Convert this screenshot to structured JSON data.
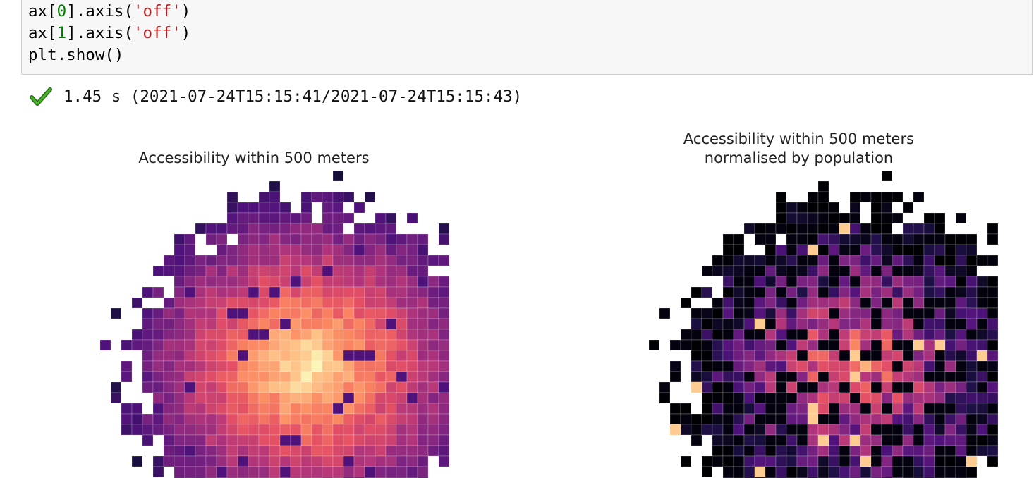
{
  "code": {
    "lines": [
      {
        "pre": "ax[",
        "num": "0",
        "mid": "].axis(",
        "str": "'off'",
        "post": ")"
      },
      {
        "pre": "ax[",
        "num": "1",
        "mid": "].axis(",
        "str": "'off'",
        "post": ")"
      },
      {
        "pre": "plt.show()",
        "num": "",
        "mid": "",
        "str": "",
        "post": ""
      }
    ]
  },
  "execution": {
    "icon": "check-icon",
    "status_text": "1.45 s (2021-07-24T15:15:41/2021-07-24T15:15:43)"
  },
  "plots": {
    "left_title": "Accessibility within 500 meters",
    "right_title_line1": "Accessibility within 500 meters",
    "right_title_line2": "normalised by population",
    "colormap": "magma"
  }
}
